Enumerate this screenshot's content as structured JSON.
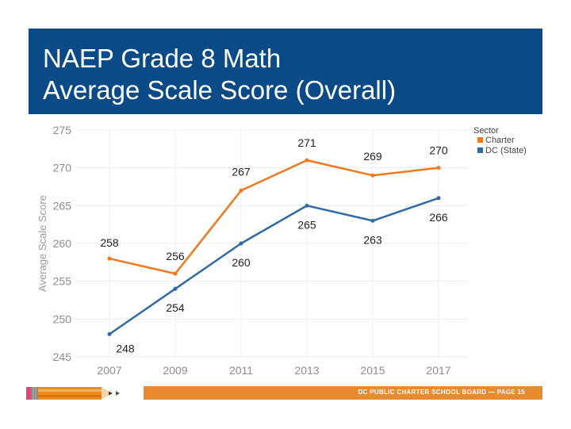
{
  "banner": {
    "title_line1": "NAEP Grade 8 Math",
    "title_line2": "Average Scale Score (Overall)",
    "color": "#0a4a86"
  },
  "footer": {
    "text": "DC PUBLIC CHARTER SCHOOL BOARD — PAGE 15",
    "bar_color": "#e88a2e",
    "icon": "pencil-icon"
  },
  "chart_data": {
    "type": "line",
    "title": "",
    "xlabel": "",
    "ylabel": "Average Scale Score",
    "categories": [
      "2007",
      "2009",
      "2011",
      "2013",
      "2015",
      "2017"
    ],
    "ylim": [
      245,
      275
    ],
    "yticks": [
      245,
      250,
      255,
      260,
      265,
      270,
      275
    ],
    "grid": true,
    "legend": {
      "title": "Sector",
      "placement": "top-right"
    },
    "series": [
      {
        "name": "Charter",
        "color": "#f0791e",
        "values": [
          258,
          256,
          267,
          271,
          269,
          270
        ],
        "labels": [
          "258",
          "256",
          "267",
          "271",
          "269",
          "270"
        ]
      },
      {
        "name": "DC (State)",
        "color": "#2f6aa7",
        "values": [
          248,
          254,
          260,
          265,
          263,
          266
        ],
        "labels": [
          "248",
          "254",
          "260",
          "265",
          "263",
          "266"
        ]
      }
    ]
  }
}
